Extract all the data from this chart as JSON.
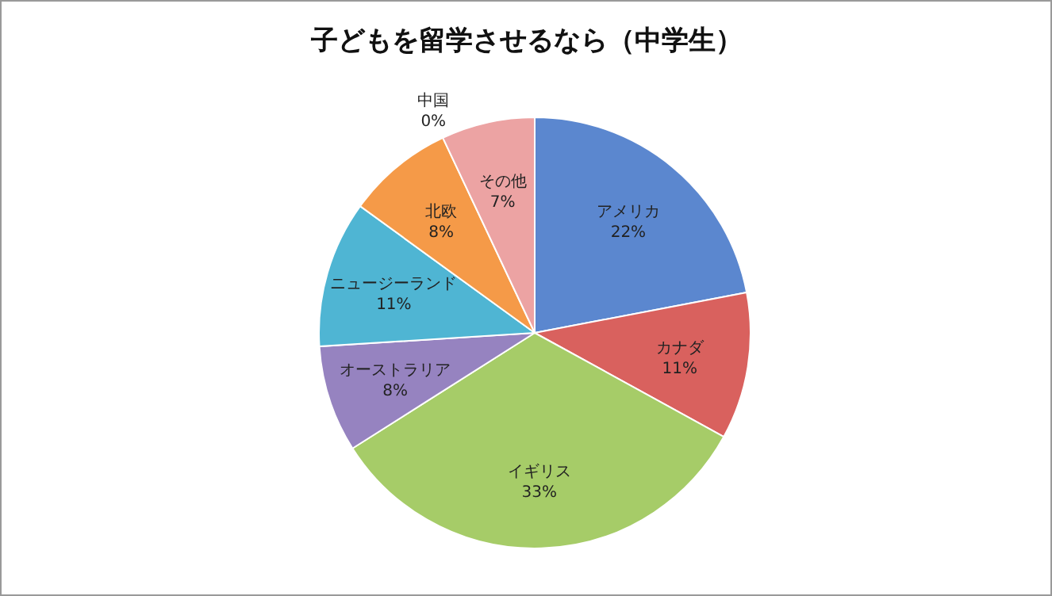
{
  "chart_data": {
    "type": "pie",
    "title": "子どもを留学させるなら（中学生）",
    "categories": [
      "アメリカ",
      "カナダ",
      "イギリス",
      "オーストラリア",
      "ニュージーランド",
      "北欧",
      "中国",
      "その他"
    ],
    "values": [
      22,
      11,
      33,
      8,
      11,
      8,
      0,
      7
    ],
    "value_labels": [
      "22%",
      "11%",
      "33%",
      "8%",
      "11%",
      "8%",
      "0%",
      "7%"
    ],
    "colors": [
      "#5b87cf",
      "#d9615e",
      "#a6cc68",
      "#9683c0",
      "#4fb5d3",
      "#f59a48",
      "#c0392b",
      "#eca3a3"
    ]
  }
}
